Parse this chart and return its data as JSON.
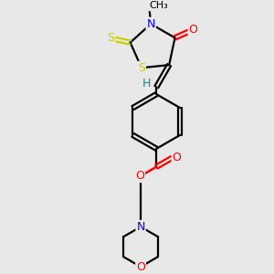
{
  "background_color": "#e8e8e8",
  "bond_color": "#000000",
  "atom_colors": {
    "O": "#ff0000",
    "N": "#0000ff",
    "S": "#cccc00",
    "C": "#000000",
    "H": "#009090"
  },
  "figsize": [
    3.0,
    3.0
  ],
  "dpi": 100
}
